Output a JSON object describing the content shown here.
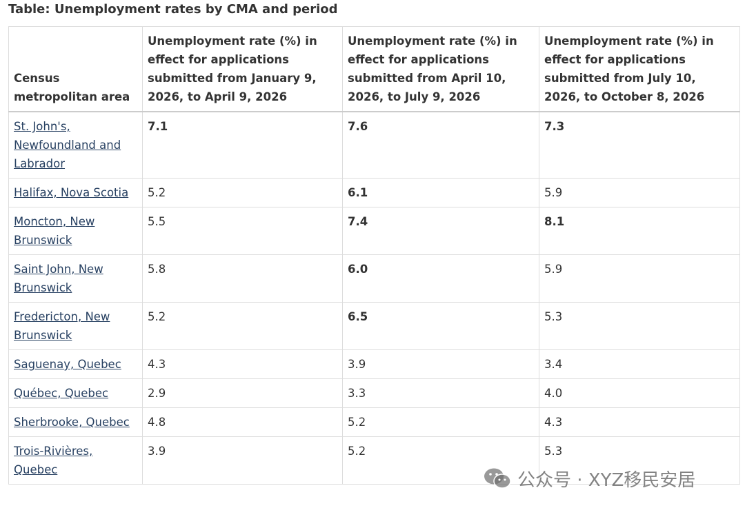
{
  "title": "Table: Unemployment rates by CMA and period",
  "columns": [
    "Census metropolitan area",
    "Unemployment rate (%) in effect for applications submitted from January 9, 2026, to April 9, 2026",
    "Unemployment rate (%) in effect for applications submitted from April 10, 2026, to July 9, 2026",
    "Unemployment rate (%) in effect for applications submitted from July 10, 2026, to October 8, 2026"
  ],
  "rows": [
    {
      "cma": "St. John's, Newfoundland and Labrador",
      "p1": "7.1",
      "p2": "7.6",
      "p3": "7.3",
      "b1": true,
      "b2": true,
      "b3": true
    },
    {
      "cma": "Halifax, Nova Scotia",
      "p1": "5.2",
      "p2": "6.1",
      "p3": "5.9",
      "b1": false,
      "b2": true,
      "b3": false
    },
    {
      "cma": "Moncton, New Brunswick",
      "p1": "5.5",
      "p2": "7.4",
      "p3": "8.1",
      "b1": false,
      "b2": true,
      "b3": true
    },
    {
      "cma": "Saint John, New Brunswick",
      "p1": "5.8",
      "p2": "6.0",
      "p3": "5.9",
      "b1": false,
      "b2": true,
      "b3": false
    },
    {
      "cma": "Fredericton, New Brunswick",
      "p1": "5.2",
      "p2": "6.5",
      "p3": "5.3",
      "b1": false,
      "b2": true,
      "b3": false
    },
    {
      "cma": "Saguenay, Quebec",
      "p1": "4.3",
      "p2": "3.9",
      "p3": "3.4",
      "b1": false,
      "b2": false,
      "b3": false
    },
    {
      "cma": "Québec, Quebec",
      "p1": "2.9",
      "p2": "3.3",
      "p3": "4.0",
      "b1": false,
      "b2": false,
      "b3": false
    },
    {
      "cma": "Sherbrooke, Quebec",
      "p1": "4.8",
      "p2": "5.2",
      "p3": "4.3",
      "b1": false,
      "b2": false,
      "b3": false
    },
    {
      "cma": "Trois-Rivières, Quebec",
      "p1": "3.9",
      "p2": "5.2",
      "p3": "5.3",
      "b1": false,
      "b2": false,
      "b3": false
    }
  ],
  "watermark": {
    "text": "公众号 · XYZ移民安居",
    "icon": "wechat-icon"
  }
}
